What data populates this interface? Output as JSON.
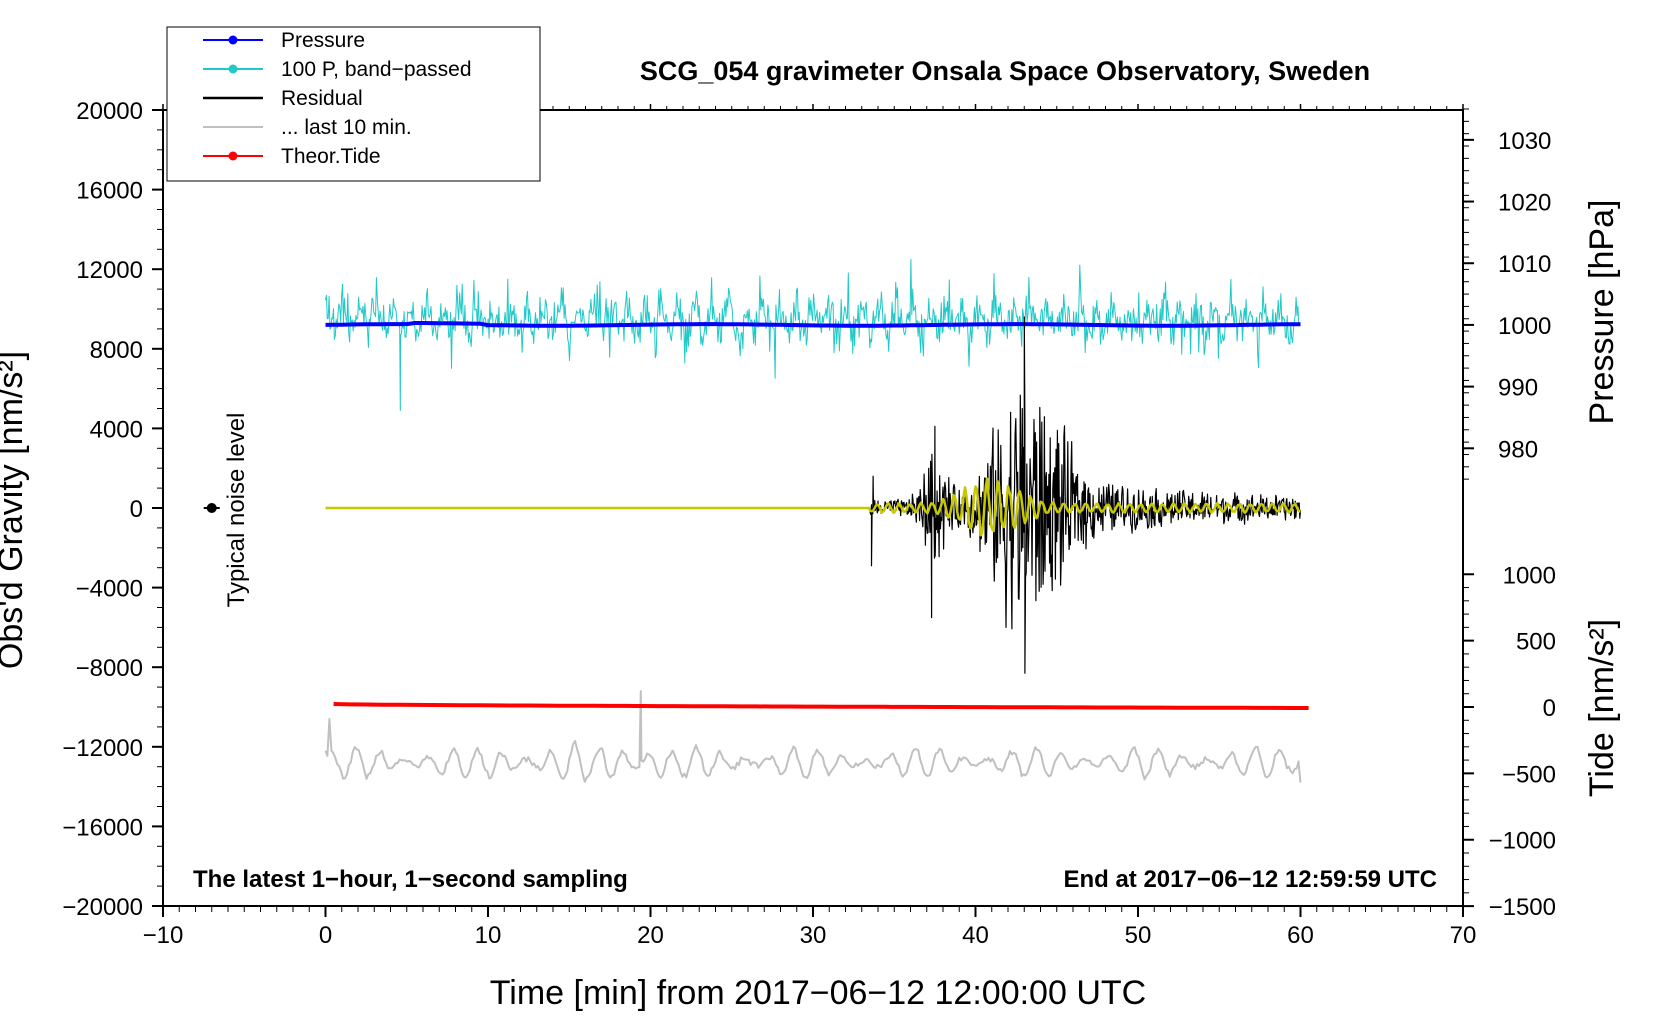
{
  "chart_data": {
    "type": "line",
    "title": "SCG_054 gravimeter Onsala Space Observatory, Sweden",
    "xlabel": "Time [min] from 2017−06−12 12:00:00 UTC",
    "ylabel_left": "Obs'd Gravity [nm/s²]",
    "ylabel_right_top": "Pressure [hPa]",
    "ylabel_right_bottom": "Tide [nm/s²]",
    "xlim": [
      -10,
      70
    ],
    "ylim": [
      -20000,
      20000
    ],
    "x_ticks": [
      -10,
      0,
      10,
      20,
      30,
      40,
      50,
      60,
      70
    ],
    "x_tick_labels": [
      "−10",
      "0",
      "10",
      "20",
      "30",
      "40",
      "50",
      "60",
      "70"
    ],
    "y_ticks": [
      20000,
      16000,
      12000,
      8000,
      4000,
      0,
      -4000,
      -8000,
      -12000,
      -16000,
      -20000
    ],
    "y_tick_labels": [
      "20000",
      "16000",
      "12000",
      "8000",
      "4000",
      "0",
      "−4000",
      "−8000",
      "−12000",
      "−16000",
      "−20000"
    ],
    "pressure_axis": {
      "values": [
        1030,
        1020,
        1010,
        1000,
        990,
        980
      ],
      "labels": [
        "1030",
        "1020",
        "1010",
        "1000",
        "990",
        "980"
      ],
      "ref_value": 1000,
      "ref_gravity": 9200,
      "gravity_per_hPa": 310
    },
    "tide_axis": {
      "values": [
        1000,
        500,
        0,
        -500,
        -1000,
        -1500
      ],
      "labels": [
        "1000",
        "500",
        "0",
        "−500",
        "−1000",
        "−1500"
      ],
      "ref_value": 0,
      "ref_gravity": -10000,
      "gravity_per_unit": 6.67
    },
    "annotations": {
      "bottom_left": "The latest 1−hour, 1−second sampling",
      "bottom_right": "End at 2017−06−12 12:59:59 UTC",
      "noise": "Typical noise level",
      "noise_x": -7
    },
    "legend": {
      "position": "top-left",
      "entries": [
        {
          "name": "Pressure",
          "color": "#0000ff",
          "marker": true
        },
        {
          "name": "100 P, band−passed",
          "color": "#20c8c8",
          "marker": true
        },
        {
          "name": "Residual",
          "color": "#000000",
          "marker": false
        },
        {
          "name": "... last 10 min.",
          "color": "#c0c0c0",
          "marker": false
        },
        {
          "name": "Theor.Tide",
          "color": "#ff0000",
          "marker": true
        }
      ]
    },
    "series": [
      {
        "name": "Pressure",
        "color": "#0000ff",
        "x_range": [
          0,
          60
        ],
        "baseline": 9200,
        "approx_value_hPa": 1000
      },
      {
        "name": "100 P, band−passed",
        "color": "#20c8c8",
        "x_range": [
          0,
          60
        ],
        "baseline": 9500,
        "amplitude": 1800
      },
      {
        "name": "Residual",
        "color": "#000000",
        "x_range": [
          0,
          60
        ],
        "baseline": 0,
        "onset_x": 33.5,
        "peak_x": 43,
        "peak_max": 9600,
        "peak_min": -8300
      },
      {
        "name": "Residual (filtered)",
        "color": "#c8c800",
        "x_range": [
          0,
          60
        ],
        "baseline": 0,
        "onset_x": 33.5
      },
      {
        "name": "... last 10 min.",
        "color": "#c0c0c0",
        "x_range": [
          0,
          60
        ],
        "baseline": -12800,
        "amplitude": 1400
      },
      {
        "name": "Theor.Tide",
        "color": "#ff0000",
        "x_range": [
          0.5,
          60.5
        ],
        "start": -9850,
        "end": -10050
      }
    ]
  }
}
